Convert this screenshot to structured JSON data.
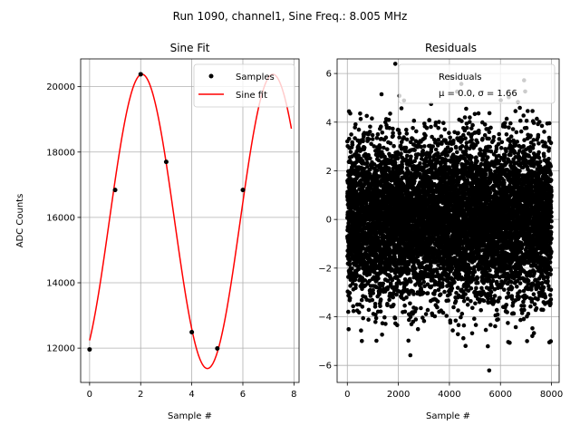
{
  "suptitle": "Run 1090, channel1, Sine Freq.: 8.005 MHz",
  "chart_data": [
    {
      "type": "line",
      "title": "Sine Fit",
      "xlabel": "Sample #",
      "ylabel": "ADC Counts",
      "xlim": [
        -0.35,
        8.2
      ],
      "ylim": [
        10950,
        20850
      ],
      "xticks": [
        0,
        2,
        4,
        6,
        8
      ],
      "yticks": [
        12000,
        14000,
        16000,
        18000,
        20000
      ],
      "grid": true,
      "legend": "top-right",
      "series": [
        {
          "name": "Samples",
          "kind": "scatter",
          "color": "#000000",
          "x": [
            0,
            1,
            2,
            3,
            4,
            5,
            6
          ],
          "y": [
            11960,
            16840,
            20380,
            17700,
            12490,
            11990,
            16840
          ]
        },
        {
          "name": "Sine fit",
          "kind": "line",
          "color": "#ff0000",
          "function": "sine",
          "x_range": [
            0,
            7.9
          ],
          "offset": 15878,
          "amplitude": 4502,
          "period": 5.125,
          "phase_x": 2.05
        }
      ]
    },
    {
      "type": "scatter",
      "title": "Residuals",
      "xlabel": "Sample #",
      "ylabel": "",
      "xlim": [
        -400,
        8300
      ],
      "ylim": [
        -6.7,
        6.6
      ],
      "xticks": [
        0,
        2000,
        4000,
        6000,
        8000
      ],
      "yticks": [
        -6,
        -4,
        -2,
        0,
        2,
        4,
        6
      ],
      "grid": true,
      "legend": "top-right",
      "series": [
        {
          "name": "Residuals",
          "color": "#000000",
          "count": 8000,
          "x_range": [
            0,
            7999
          ],
          "mean": 0.0,
          "sigma": 1.66
        }
      ],
      "legend_lines": [
        "Residuals",
        "μ = 0.0, σ = 1.66"
      ]
    }
  ]
}
